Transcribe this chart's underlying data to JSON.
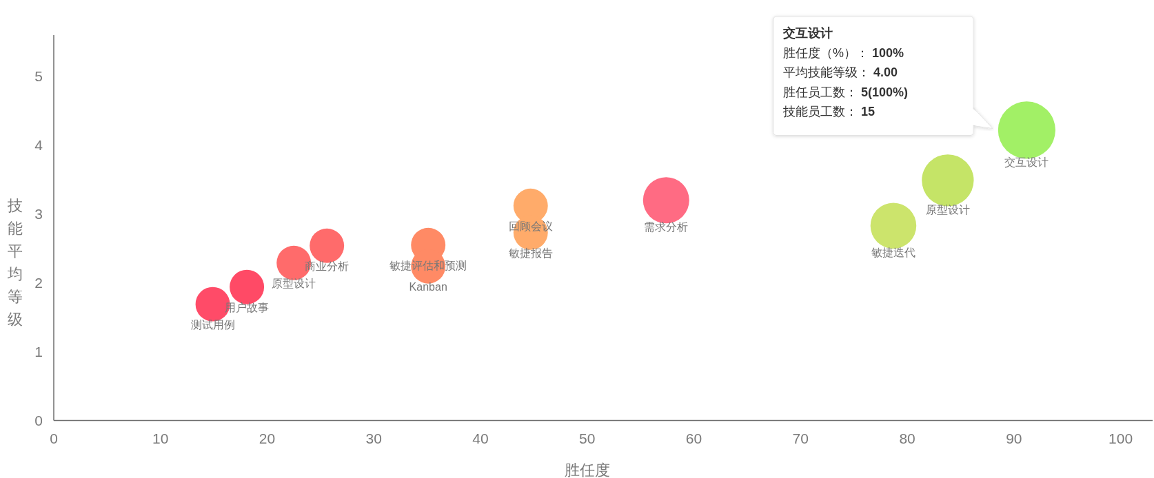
{
  "chart_data": {
    "type": "bubble",
    "xlabel": "胜任度",
    "ylabel": "技能平均等级",
    "xlim": [
      0,
      103
    ],
    "xticks": [
      0,
      10,
      20,
      30,
      40,
      50,
      60,
      70,
      80,
      90,
      100
    ],
    "ylim": [
      0,
      5.6
    ],
    "yticks": [
      0,
      1,
      2,
      3,
      4,
      5
    ],
    "series": [
      {
        "name": "测试用例",
        "color": "#ff4b68",
        "x": [
          14.9
        ],
        "values": [
          1.69
        ],
        "sizes": [
          0.36
        ]
      },
      {
        "name": "用户故事",
        "color": "#ff4a66",
        "x": [
          18.1
        ],
        "values": [
          1.94
        ],
        "sizes": [
          0.36
        ]
      },
      {
        "name": "原型设计",
        "color": "#ff6b6b",
        "x": [
          22.5
        ],
        "values": [
          2.29
        ],
        "sizes": [
          0.36
        ]
      },
      {
        "name": "商业分析",
        "color": "#ff6b6b",
        "x": [
          25.6
        ],
        "values": [
          2.54
        ],
        "sizes": [
          0.36
        ]
      },
      {
        "name": "敏捷评估和预测",
        "color": "#ff8a65",
        "x": [
          35.1
        ],
        "values": [
          2.55
        ],
        "sizes": [
          0.36
        ]
      },
      {
        "name": "Kanban",
        "color": "#ff8a65",
        "x": [
          35.1
        ],
        "values": [
          2.24
        ],
        "sizes": [
          0.36
        ]
      },
      {
        "name": "回顾会议",
        "color": "#ffab6a",
        "x": [
          44.7
        ],
        "values": [
          3.12
        ],
        "sizes": [
          0.36
        ]
      },
      {
        "name": "敏捷报告",
        "color": "#ffab6a",
        "x": [
          44.7
        ],
        "values": [
          2.73
        ],
        "sizes": [
          0.36
        ]
      },
      {
        "name": "需求分析",
        "color": "#ff6b83",
        "x": [
          57.4
        ],
        "values": [
          3.2
        ],
        "sizes": [
          0.65
        ]
      },
      {
        "name": "交互设计",
        "color": "#a2f066",
        "x": [
          91.2
        ],
        "values": [
          4.22
        ],
        "sizes": [
          1
        ]
      },
      {
        "name": "原型设计",
        "color": "#c5e467",
        "x": [
          83.8
        ],
        "values": [
          3.49
        ],
        "sizes": [
          0.82
        ]
      },
      {
        "name": "敏捷迭代",
        "color": "#cce46c",
        "x": [
          78.7
        ],
        "values": [
          2.83
        ],
        "sizes": [
          0.64
        ]
      }
    ],
    "annotations": [
      "交互设计",
      "胜任度（%）：100%",
      "平均技能等级：4.00",
      "胜任员工数：5(100%)",
      "技能员工数：15"
    ]
  }
}
